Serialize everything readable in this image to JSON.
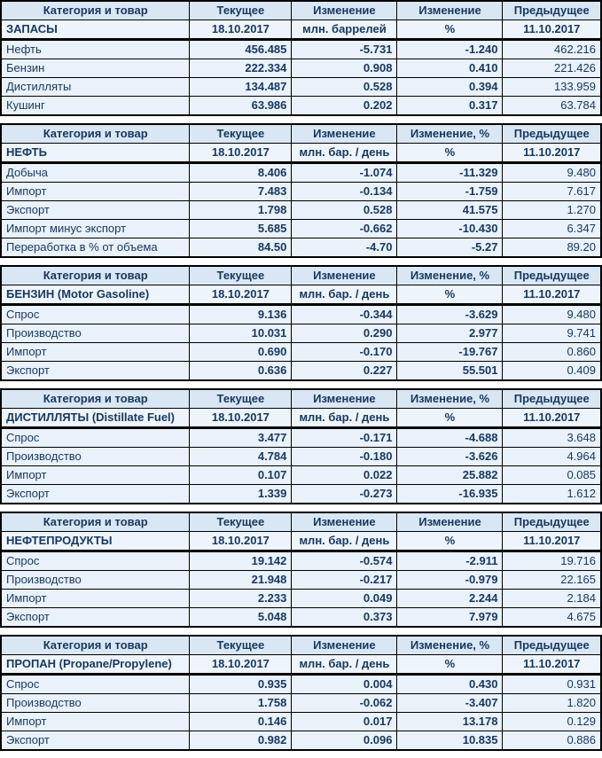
{
  "colors": {
    "header_bg": "#d9e7f5",
    "row_bg": "#e9f1fa",
    "header_text": "#17375e",
    "current_text": "#10243f",
    "previous_text": "#3c3c3c",
    "positive": "#00a14e",
    "negative": "#e60000",
    "border": "#000000"
  },
  "tables": [
    {
      "headers": [
        "Категория и товар",
        "Текущее",
        "Изменение",
        "Изменение",
        "Предыдущее"
      ],
      "subheaders": [
        "ЗАПАСЫ",
        "18.10.2017",
        "млн. баррелей",
        "%",
        "11.10.2017"
      ],
      "rows": [
        {
          "label": "Нефть",
          "current": "456.485",
          "change": "-5.731",
          "change_pct": "-1.240",
          "previous": "462.216"
        },
        {
          "label": "Бензин",
          "current": "222.334",
          "change": "0.908",
          "change_pct": "0.410",
          "previous": "221.426"
        },
        {
          "label": "Дистилляты",
          "current": "134.487",
          "change": "0.528",
          "change_pct": "0.394",
          "previous": "133.959"
        },
        {
          "label": "Кушинг",
          "current": "63.986",
          "change": "0.202",
          "change_pct": "0.317",
          "previous": "63.784"
        }
      ]
    },
    {
      "headers": [
        "Категория и товар",
        "Текущее",
        "Изменение",
        "Изменение, %",
        "Предыдущее"
      ],
      "subheaders": [
        "НЕФТЬ",
        "18.10.2017",
        "млн. бар. / день",
        "%",
        "11.10.2017"
      ],
      "rows": [
        {
          "label": "Добыча",
          "current": "8.406",
          "change": "-1.074",
          "change_pct": "-11.329",
          "previous": "9.480"
        },
        {
          "label": "Импорт",
          "current": "7.483",
          "change": "-0.134",
          "change_pct": "-1.759",
          "previous": "7.617"
        },
        {
          "label": "Экспорт",
          "current": "1.798",
          "change": "0.528",
          "change_pct": "41.575",
          "previous": "1.270"
        },
        {
          "label": "Импорт минус экспорт",
          "current": "5.685",
          "change": "-0.662",
          "change_pct": "-10.430",
          "previous": "6.347"
        },
        {
          "label": "Переработка в % от объема",
          "current": "84.50",
          "change": "-4.70",
          "change_pct": "-5.27",
          "previous": "89.20"
        }
      ]
    },
    {
      "headers": [
        "Категория и товар",
        "Текущее",
        "Изменение",
        "Изменение, %",
        "Предыдущее"
      ],
      "subheaders": [
        "БЕНЗИН (Motor Gasoline)",
        "18.10.2017",
        "млн. бар. / день",
        "%",
        "11.10.2017"
      ],
      "rows": [
        {
          "label": "Спрос",
          "current": "9.136",
          "change": "-0.344",
          "change_pct": "-3.629",
          "previous": "9.480"
        },
        {
          "label": "Производство",
          "current": "10.031",
          "change": "0.290",
          "change_pct": "2.977",
          "previous": "9.741"
        },
        {
          "label": "Импорт",
          "current": "0.690",
          "change": "-0.170",
          "change_pct": "-19.767",
          "previous": "0.860"
        },
        {
          "label": "Экспорт",
          "current": "0.636",
          "change": "0.227",
          "change_pct": "55.501",
          "previous": "0.409"
        }
      ]
    },
    {
      "headers": [
        "Категория и товар",
        "Текущее",
        "Изменение",
        "Изменение, %",
        "Предыдущее"
      ],
      "subheaders": [
        "ДИСТИЛЛЯТЫ (Distillate Fuel)",
        "18.10.2017",
        "млн. бар. / день",
        "%",
        "11.10.2017"
      ],
      "rows": [
        {
          "label": "Спрос",
          "current": "3.477",
          "change": "-0.171",
          "change_pct": "-4.688",
          "previous": "3.648"
        },
        {
          "label": "Производство",
          "current": "4.784",
          "change": "-0.180",
          "change_pct": "-3.626",
          "previous": "4.964"
        },
        {
          "label": "Импорт",
          "current": "0.107",
          "change": "0.022",
          "change_pct": "25.882",
          "previous": "0.085"
        },
        {
          "label": "Экспорт",
          "current": "1.339",
          "change": "-0.273",
          "change_pct": "-16.935",
          "previous": "1.612"
        }
      ]
    },
    {
      "headers": [
        "Категория и товар",
        "Текущее",
        "Изменение",
        "Изменение",
        "Предыдущее"
      ],
      "subheaders": [
        "НЕФТЕПРОДУКТЫ",
        "18.10.2017",
        "млн. бар. / день",
        "%",
        "11.10.2017"
      ],
      "rows": [
        {
          "label": "Спрос",
          "current": "19.142",
          "change": "-0.574",
          "change_pct": "-2.911",
          "previous": "19.716"
        },
        {
          "label": "Производство",
          "current": "21.948",
          "change": "-0.217",
          "change_pct": "-0.979",
          "previous": "22.165"
        },
        {
          "label": "Импорт",
          "current": "2.233",
          "change": "0.049",
          "change_pct": "2.244",
          "previous": "2.184"
        },
        {
          "label": "Экспорт",
          "current": "5.048",
          "change": "0.373",
          "change_pct": "7.979",
          "previous": "4.675"
        }
      ]
    },
    {
      "headers": [
        "Категория и товар",
        "Текущее",
        "Изменение",
        "Изменение, %",
        "Предыдущее"
      ],
      "subheaders": [
        "ПРОПАН (Propane/Propylene)",
        "18.10.2017",
        "млн. бар. / день",
        "%",
        "11.10.2017"
      ],
      "rows": [
        {
          "label": "Спрос",
          "current": "0.935",
          "change": "0.004",
          "change_pct": "0.430",
          "previous": "0.931"
        },
        {
          "label": "Производство",
          "current": "1.758",
          "change": "-0.062",
          "change_pct": "-3.407",
          "previous": "1.820"
        },
        {
          "label": "Импорт",
          "current": "0.146",
          "change": "0.017",
          "change_pct": "13.178",
          "previous": "0.129"
        },
        {
          "label": "Экспорт",
          "current": "0.982",
          "change": "0.096",
          "change_pct": "10.835",
          "previous": "0.886"
        }
      ]
    }
  ]
}
